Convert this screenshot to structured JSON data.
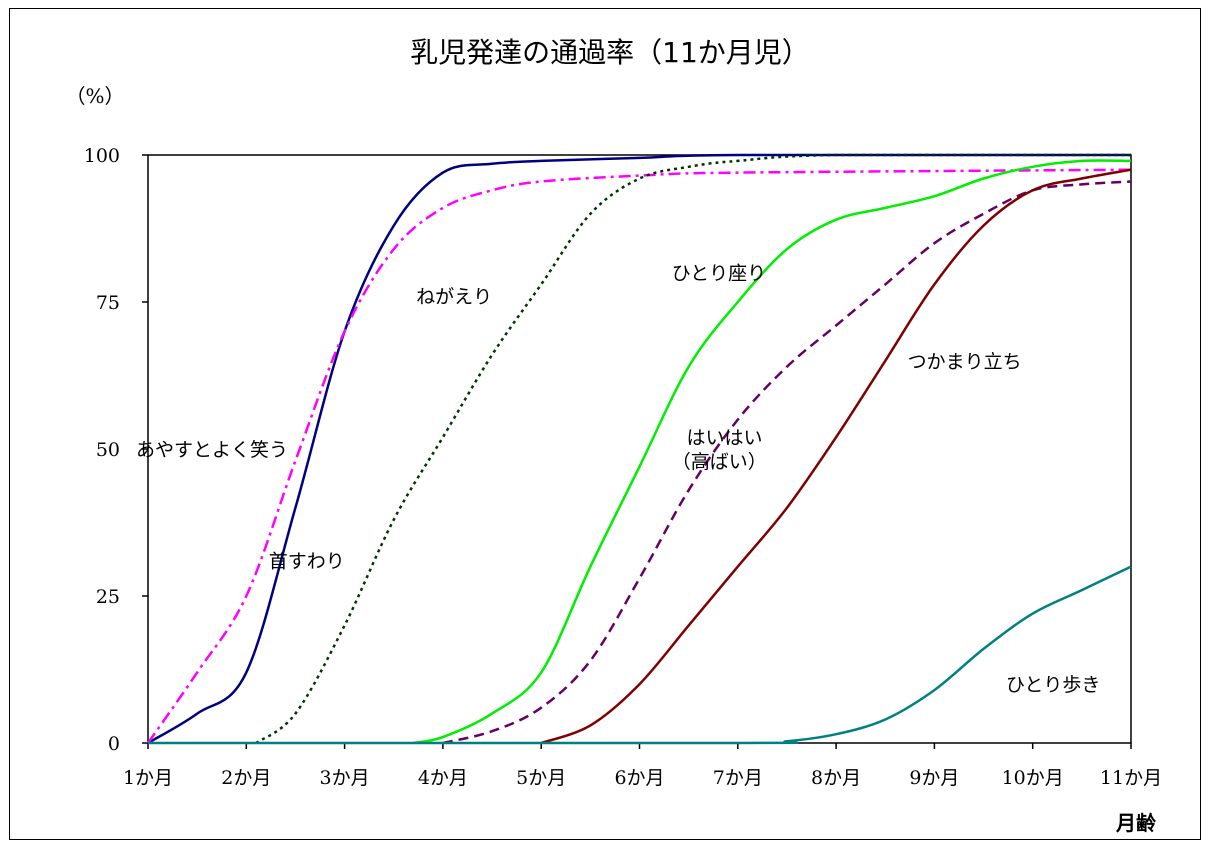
{
  "chart_data": {
    "type": "line",
    "title": "乳児発達の通過率（11か月児）",
    "ylabel": "（%）",
    "xlabel": "月齢",
    "ylim": [
      0,
      100
    ],
    "xlim": [
      1,
      11
    ],
    "yticks": [
      "0",
      "25",
      "50",
      "75",
      "100"
    ],
    "xticks": [
      "1か月",
      "2か月",
      "3か月",
      "4か月",
      "5か月",
      "6か月",
      "7か月",
      "8か月",
      "9か月",
      "10か月",
      "11か月"
    ],
    "grid": false,
    "series": [
      {
        "name": "首すわり",
        "color": "#000080",
        "dash": "solid",
        "points": [
          [
            1,
            0
          ],
          [
            1.5,
            5
          ],
          [
            2,
            12
          ],
          [
            2.5,
            40
          ],
          [
            3,
            70
          ],
          [
            3.5,
            88
          ],
          [
            4,
            97
          ],
          [
            4.5,
            98.5
          ],
          [
            5,
            99
          ],
          [
            6,
            99.5
          ],
          [
            7,
            100
          ],
          [
            11,
            100
          ]
        ]
      },
      {
        "name": "あやすとよく笑う",
        "color": "#ff00ff",
        "dash": "dashdot",
        "points": [
          [
            1,
            0
          ],
          [
            1.5,
            12
          ],
          [
            2,
            25
          ],
          [
            2.5,
            48
          ],
          [
            3,
            70
          ],
          [
            3.5,
            84
          ],
          [
            4,
            91
          ],
          [
            4.5,
            94
          ],
          [
            5,
            95.5
          ],
          [
            6,
            96.5
          ],
          [
            7,
            97
          ],
          [
            11,
            97.5
          ]
        ]
      },
      {
        "name": "ねがえり",
        "color": "#003300",
        "dash": "dotted",
        "points": [
          [
            2.1,
            0
          ],
          [
            2.5,
            5
          ],
          [
            3,
            20
          ],
          [
            3.5,
            38
          ],
          [
            4,
            52
          ],
          [
            4.5,
            66
          ],
          [
            5,
            78
          ],
          [
            5.5,
            90
          ],
          [
            6,
            96
          ],
          [
            6.5,
            98
          ],
          [
            7,
            99
          ],
          [
            8,
            100
          ],
          [
            11,
            100
          ]
        ]
      },
      {
        "name": "ひとり座り",
        "color": "#00ee00",
        "dash": "solid",
        "points": [
          [
            3.7,
            0
          ],
          [
            4,
            1
          ],
          [
            4.5,
            5
          ],
          [
            5,
            12
          ],
          [
            5.5,
            30
          ],
          [
            6,
            47
          ],
          [
            6.5,
            64
          ],
          [
            7,
            75
          ],
          [
            7.5,
            84
          ],
          [
            8,
            89
          ],
          [
            8.5,
            91
          ],
          [
            9,
            93
          ],
          [
            9.5,
            96
          ],
          [
            10,
            98
          ],
          [
            10.5,
            99
          ],
          [
            11,
            99
          ]
        ]
      },
      {
        "name": "はいはい（高ばい）",
        "color": "#660066",
        "dash": "dashed",
        "points": [
          [
            4,
            0
          ],
          [
            4.5,
            2
          ],
          [
            5,
            6
          ],
          [
            5.5,
            14
          ],
          [
            6,
            28
          ],
          [
            6.5,
            43
          ],
          [
            7,
            55
          ],
          [
            7.5,
            64
          ],
          [
            8,
            71
          ],
          [
            8.5,
            78
          ],
          [
            9,
            85
          ],
          [
            9.5,
            90
          ],
          [
            10,
            94
          ],
          [
            10.5,
            95
          ],
          [
            11,
            95.5
          ]
        ]
      },
      {
        "name": "つかまり立ち",
        "color": "#800000",
        "dash": "solid",
        "points": [
          [
            5,
            0
          ],
          [
            5.5,
            3
          ],
          [
            6,
            10
          ],
          [
            6.5,
            20
          ],
          [
            7,
            30
          ],
          [
            7.5,
            40
          ],
          [
            8,
            52
          ],
          [
            8.5,
            65
          ],
          [
            9,
            78
          ],
          [
            9.5,
            88
          ],
          [
            10,
            94
          ],
          [
            10.5,
            96
          ],
          [
            11,
            97.5
          ]
        ]
      },
      {
        "name": "ひとり歩き",
        "color": "#008080",
        "dash": "solid",
        "points": [
          [
            1,
            0
          ],
          [
            7,
            0
          ],
          [
            7.5,
            0.3
          ],
          [
            8,
            1.5
          ],
          [
            8.5,
            4
          ],
          [
            9,
            9
          ],
          [
            9.5,
            16
          ],
          [
            10,
            22
          ],
          [
            10.5,
            26
          ],
          [
            11,
            30
          ]
        ]
      }
    ],
    "annotations": [
      {
        "text": "あやすとよく笑う",
        "x": 1.0,
        "y": 50
      },
      {
        "text": "首すわり",
        "x": 2.35,
        "y": 31
      },
      {
        "text": "ねがえり",
        "x": 3.85,
        "y": 76
      },
      {
        "text": "ひとり座り",
        "x": 6.45,
        "y": 80
      },
      {
        "text": "はいはい",
        "x": 6.6,
        "y": 52
      },
      {
        "text": "（高ばい）",
        "x": 6.45,
        "y": 48
      },
      {
        "text": "つかまり立ち",
        "x": 8.85,
        "y": 65
      },
      {
        "text": "ひとり歩き",
        "x": 9.85,
        "y": 10
      }
    ]
  }
}
